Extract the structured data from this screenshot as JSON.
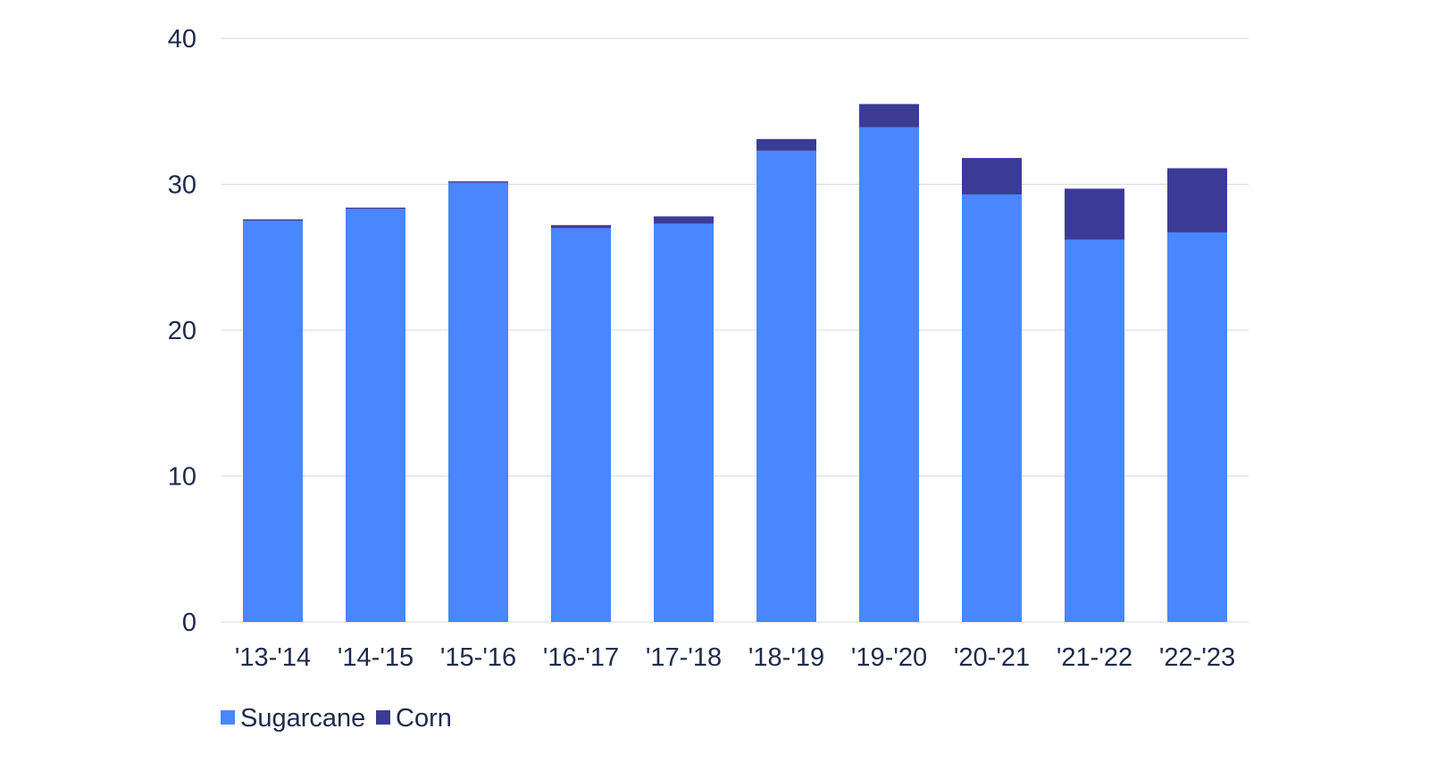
{
  "chart_data": {
    "type": "bar",
    "stacked": true,
    "title": "",
    "xlabel": "",
    "ylabel": "",
    "categories": [
      "'13-'14",
      "'14-'15",
      "'15-'16",
      "'16-'17",
      "'17-'18",
      "'18-'19",
      "'19-'20",
      "'20-'21",
      "'21-'22",
      "'22-'23"
    ],
    "series": [
      {
        "name": "Sugarcane",
        "color": "#4a86ff",
        "values": [
          27.5,
          28.3,
          30.1,
          27.0,
          27.3,
          32.3,
          33.9,
          29.3,
          26.2,
          26.7
        ]
      },
      {
        "name": "Corn",
        "color": "#3b3b96",
        "values": [
          0.1,
          0.1,
          0.1,
          0.2,
          0.5,
          0.8,
          1.6,
          2.5,
          3.5,
          4.4
        ]
      }
    ],
    "ylim": [
      0,
      40
    ],
    "yticks": [
      "0",
      "10",
      "20",
      "30",
      "40"
    ],
    "grid": true,
    "legend_position": "bottom-left"
  }
}
